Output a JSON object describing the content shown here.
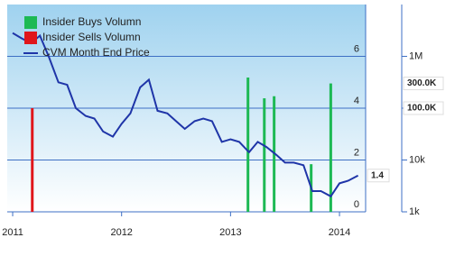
{
  "chart_data": {
    "type": "combo",
    "x_ticks_axis": "years",
    "xlim": [
      2010.95,
      2014.24
    ],
    "xticks": [
      2011,
      2012,
      2013,
      2014
    ],
    "ylim": [
      0,
      8
    ],
    "yticks": [
      0,
      2,
      4,
      6
    ],
    "y2lim": [
      1000,
      10000000
    ],
    "y2scale": "log",
    "y2ticks": [
      {
        "value": 1000,
        "label": "1k"
      },
      {
        "value": 10000,
        "label": "10k"
      },
      {
        "value": 100000,
        "label": "100k"
      },
      {
        "value": 1000000,
        "label": "1M"
      }
    ],
    "grid": true,
    "legend": "top-left",
    "series": [
      {
        "name": "Insider Buys Volumn",
        "type": "bar",
        "axis": "y2",
        "color": "#1db954",
        "x": [
          2013.16,
          2013.31,
          2013.4,
          2013.74,
          2013.92
        ],
        "values": [
          390000,
          155000,
          170000,
          8300,
          300000
        ]
      },
      {
        "name": "Insider Sells Volumn",
        "type": "bar",
        "axis": "y2",
        "color": "#e0161b",
        "x": [
          2011.18
        ],
        "values": [
          100000
        ]
      },
      {
        "name": "CVM Month End Price",
        "type": "line",
        "color": "#1f35a8",
        "x": [
          2011,
          2011.08,
          2011.17,
          2011.25,
          2011.33,
          2011.42,
          2011.5,
          2011.58,
          2011.67,
          2011.75,
          2011.83,
          2011.92,
          2012,
          2012.08,
          2012.17,
          2012.25,
          2012.33,
          2012.42,
          2012.5,
          2012.58,
          2012.67,
          2012.75,
          2012.83,
          2012.92,
          2013,
          2013.08,
          2013.17,
          2013.25,
          2013.33,
          2013.42,
          2013.5,
          2013.58,
          2013.67,
          2013.75,
          2013.83,
          2013.92,
          2014,
          2014.08,
          2014.17
        ],
        "values": [
          6.9,
          6.7,
          6.5,
          6.8,
          6.0,
          5.0,
          4.9,
          4.0,
          3.7,
          3.6,
          3.1,
          2.9,
          3.4,
          3.8,
          4.8,
          5.1,
          3.9,
          3.8,
          3.5,
          3.2,
          3.5,
          3.6,
          3.5,
          2.7,
          2.8,
          2.7,
          2.3,
          2.7,
          2.5,
          2.2,
          1.9,
          1.9,
          1.8,
          0.8,
          0.8,
          0.6,
          1.1,
          1.2,
          1.4
        ]
      }
    ],
    "annotations": [
      {
        "text": "300.0K",
        "value": 300000,
        "axis": "y2",
        "color": "#1db954"
      },
      {
        "text": "100.0K",
        "value": 100000,
        "axis": "y2",
        "color": "#e0161b"
      },
      {
        "text": "1.4",
        "value": 1.4,
        "axis": "y",
        "color": "#1f35a8"
      }
    ]
  }
}
